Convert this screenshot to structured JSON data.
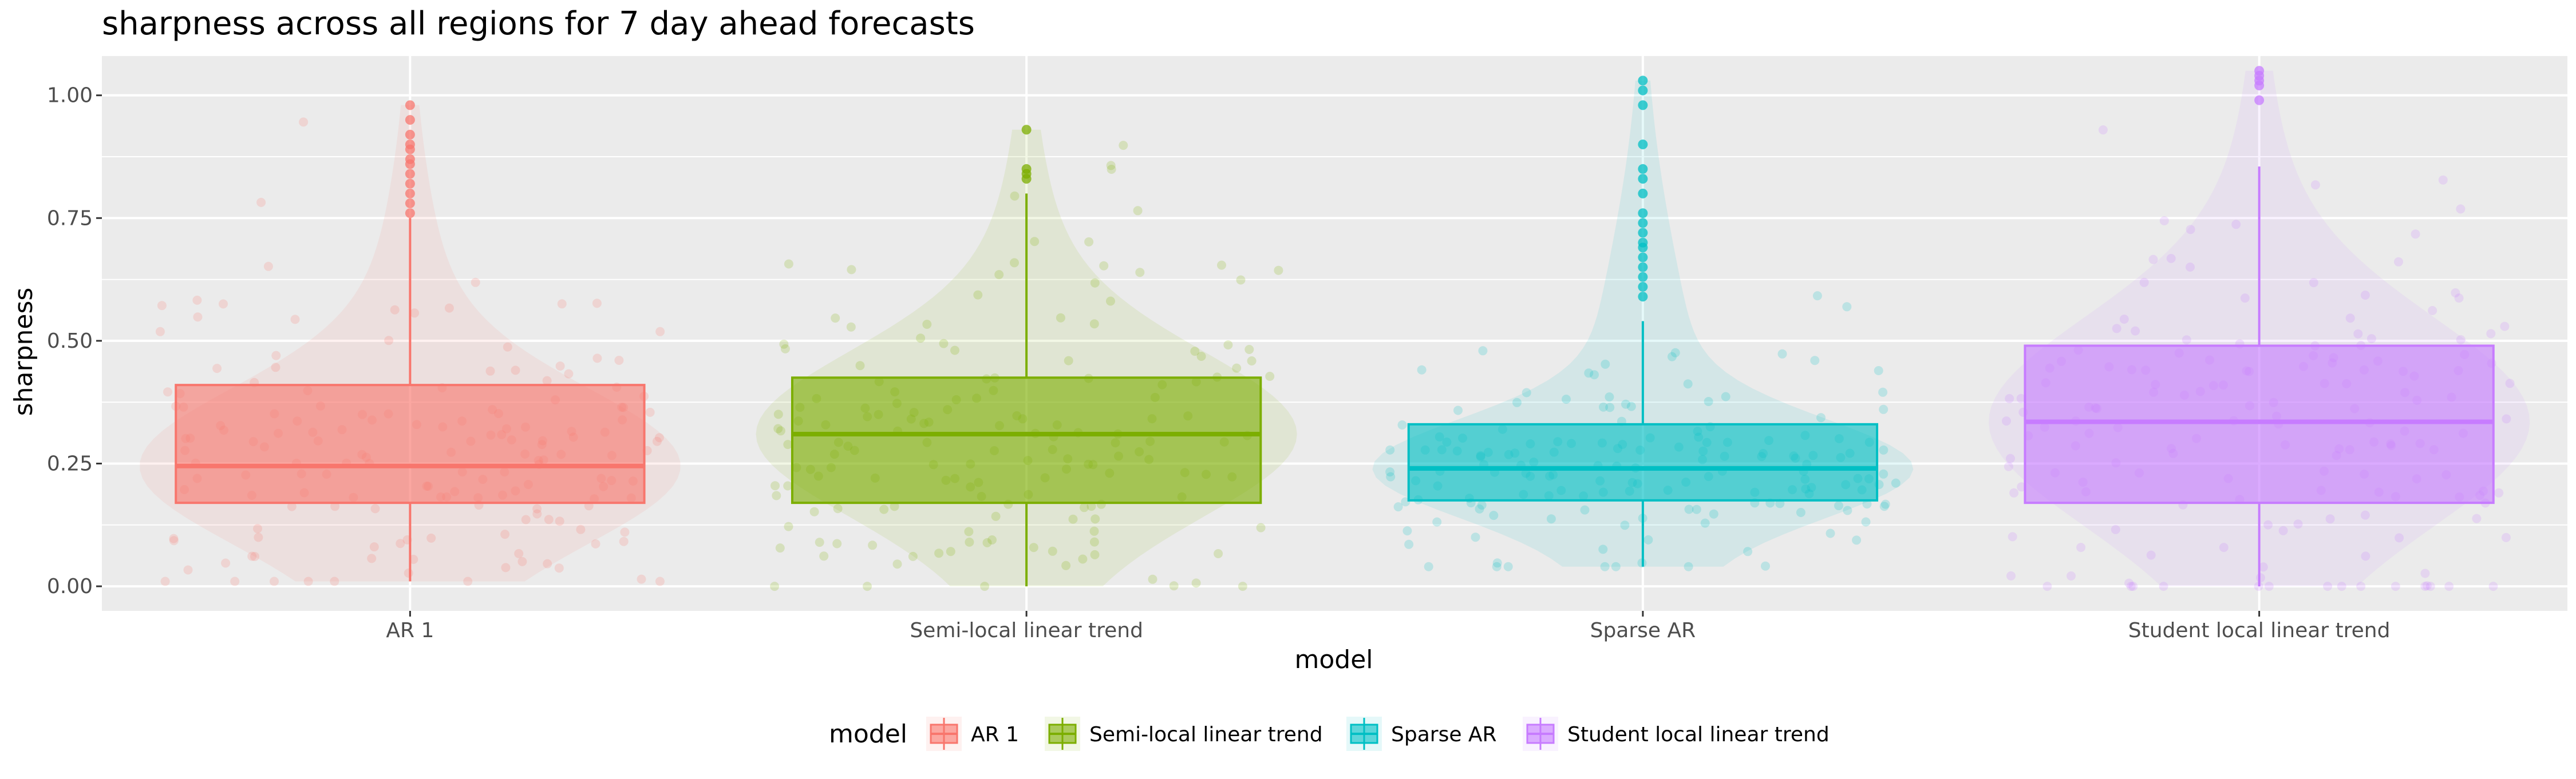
{
  "chart_data": {
    "type": "boxplot",
    "title": "sharpness across all regions for 7 day ahead forecasts",
    "xlabel": "model",
    "ylabel": "sharpness",
    "ylim": [
      -0.05,
      1.08
    ],
    "yticks": [
      0.0,
      0.25,
      0.5,
      0.75,
      1.0
    ],
    "ytick_labels": [
      "0.00",
      "0.25",
      "0.50",
      "0.75",
      "1.00"
    ],
    "categories": [
      "AR 1",
      "Semi-local linear trend",
      "Sparse AR",
      "Student local linear trend"
    ],
    "series": [
      {
        "name": "AR 1",
        "color": "#F8766D",
        "box": {
          "lower_whisker": 0.01,
          "q1": 0.17,
          "median": 0.245,
          "q3": 0.41,
          "upper_whisker": 0.75
        },
        "outliers": [
          0.76,
          0.78,
          0.8,
          0.82,
          0.84,
          0.86,
          0.87,
          0.89,
          0.9,
          0.92,
          0.95,
          0.98
        ]
      },
      {
        "name": "Semi-local linear trend",
        "color": "#7CAE00",
        "box": {
          "lower_whisker": 0.0,
          "q1": 0.17,
          "median": 0.31,
          "q3": 0.425,
          "upper_whisker": 0.8
        },
        "outliers": [
          0.83,
          0.84,
          0.85,
          0.93
        ]
      },
      {
        "name": "Sparse AR",
        "color": "#00BFC4",
        "box": {
          "lower_whisker": 0.04,
          "q1": 0.175,
          "median": 0.24,
          "q3": 0.33,
          "upper_whisker": 0.54
        },
        "outliers": [
          0.59,
          0.61,
          0.63,
          0.65,
          0.67,
          0.69,
          0.7,
          0.72,
          0.74,
          0.76,
          0.8,
          0.83,
          0.85,
          0.9,
          0.98,
          1.01,
          1.03
        ]
      },
      {
        "name": "Student local linear trend",
        "color": "#C77CFF",
        "box": {
          "lower_whisker": 0.0,
          "q1": 0.17,
          "median": 0.335,
          "q3": 0.49,
          "upper_whisker": 0.855
        },
        "outliers": [
          0.99,
          1.02,
          1.03,
          1.04,
          1.05
        ]
      }
    ],
    "legend": {
      "title": "model",
      "position": "bottom",
      "entries": [
        "AR 1",
        "Semi-local linear trend",
        "Sparse AR",
        "Student local linear trend"
      ]
    },
    "grid": true,
    "jittered_points": true,
    "violin_layer": true
  }
}
